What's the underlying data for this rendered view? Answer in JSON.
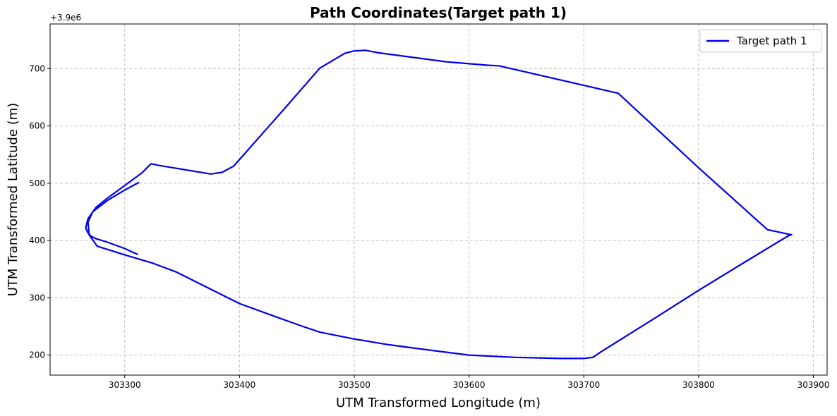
{
  "chart_data": {
    "type": "line",
    "title": "Path Coordinates(Target path 1)",
    "xlabel": "UTM Transformed Longitude (m)",
    "ylabel": "UTM Transformed Latitude (m)",
    "y_offset_label": "+3.9e6",
    "xlim": [
      303235,
      303912
    ],
    "ylim": [
      165,
      778
    ],
    "x_ticks": [
      303300,
      303400,
      303500,
      303600,
      303700,
      303800,
      303900
    ],
    "x_tick_labels": [
      "303300",
      "303400",
      "303500",
      "303600",
      "303700",
      "303800",
      "303900"
    ],
    "y_ticks": [
      200,
      300,
      400,
      500,
      600,
      700
    ],
    "y_tick_labels": [
      "200",
      "300",
      "400",
      "500",
      "600",
      "700"
    ],
    "grid": true,
    "legend_position": "top-right",
    "series_color": "#0000ee",
    "series": [
      {
        "name": "Target path 1",
        "x": [
          303312,
          303300,
          303285,
          303272,
          303268,
          303269,
          303276,
          303300,
          303325,
          303345,
          303370,
          303400,
          303430,
          303455,
          303470,
          303500,
          303530,
          303560,
          303600,
          303640,
          303680,
          303700,
          303708,
          303713,
          303720,
          303760,
          303800,
          303840,
          303878,
          303881,
          303876,
          303860,
          303800,
          303730,
          303626,
          303616,
          303580,
          303520,
          303510,
          303500,
          303492,
          303470,
          303440,
          303410,
          303395,
          303385,
          303375,
          303345,
          303330,
          303323,
          303315,
          303300,
          303285,
          303275,
          303268,
          303266,
          303268,
          303271,
          303275,
          303285,
          303300,
          303311
        ],
        "y": [
          501,
          488,
          470,
          450,
          432,
          410,
          390,
          375,
          360,
          345,
          320,
          290,
          268,
          250,
          240,
          228,
          218,
          210,
          200,
          196,
          194,
          194,
          196,
          203,
          212,
          262,
          313,
          362,
          408,
          410,
          412,
          419,
          527,
          657,
          705,
          706,
          712,
          728,
          732,
          731,
          727,
          701,
          632,
          564,
          530,
          519,
          516,
          526,
          531,
          534,
          518,
          496,
          474,
          458,
          438,
          422,
          413,
          407,
          403,
          397,
          386,
          376
        ],
        "color": "#0000ee"
      }
    ]
  }
}
